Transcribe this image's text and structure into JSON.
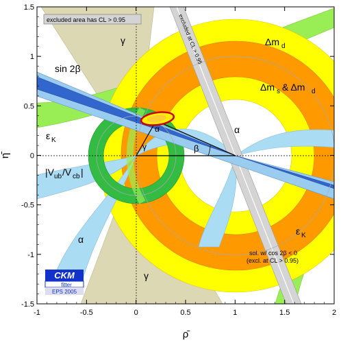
{
  "chart_data": {
    "type": "scatter",
    "title": "",
    "xlabel": "ρ̄",
    "ylabel": "η̄",
    "xlim": [
      -1,
      2
    ],
    "ylim": [
      -1.5,
      1.5
    ],
    "x_ticks": [
      {
        "v": -1,
        "label": "-1"
      },
      {
        "v": -0.5,
        "label": "-0.5"
      },
      {
        "v": 0,
        "label": "0"
      },
      {
        "v": 0.5,
        "label": "0.5"
      },
      {
        "v": 1,
        "label": "1"
      },
      {
        "v": 1.5,
        "label": "1.5"
      },
      {
        "v": 2,
        "label": "2"
      }
    ],
    "y_ticks": [
      {
        "v": -1.5,
        "label": "-1.5"
      },
      {
        "v": -1,
        "label": "-1"
      },
      {
        "v": -0.5,
        "label": "-0.5"
      },
      {
        "v": 0,
        "label": "0"
      },
      {
        "v": 0.5,
        "label": "0.5"
      },
      {
        "v": 1,
        "label": "1"
      },
      {
        "v": 1.5,
        "label": "1.5"
      }
    ],
    "grid": false,
    "apex": {
      "rho": 0.2,
      "eta": 0.35
    },
    "triangle": [
      [
        0,
        0
      ],
      [
        1,
        0
      ],
      [
        0.2,
        0.35
      ]
    ],
    "constraints": {
      "dmd": {
        "center": [
          1,
          0
        ],
        "rings": [
          {
            "r_out": 1.38,
            "r_in": 0.57,
            "color": "#ffff00"
          },
          {
            "r_out": 1.16,
            "r_in": 0.8,
            "color": "#ff9900"
          }
        ]
      },
      "vub": {
        "center": [
          0,
          0
        ],
        "rings": [
          {
            "r_out": 0.48,
            "r_in": 0.33,
            "color": "#33bb44"
          }
        ]
      },
      "sin2beta": {
        "beta_deg": [
          21.5,
          24.5
        ],
        "color_outer": "#99ccee",
        "color_inner": "#3366cc"
      }
    },
    "annotations": {
      "excluded_area": "excluded area has CL > 0.95",
      "excluded_band": "excluded at CL > 0.95",
      "gamma": "γ",
      "alpha": "α",
      "beta": "β",
      "sin2beta": "sin 2β",
      "dmd": "Δm",
      "dmd_sub": "d",
      "dms_dmd_1": "Δm",
      "dms_dmd_sub1": "s",
      "dms_dmd_amp": "& Δm",
      "dms_dmd_sub2": "d",
      "epsk": "ε",
      "epsk_sub": "K",
      "vub": "|V",
      "vub_sub1": "ub",
      "vub_mid": "/V",
      "vub_sub2": "cb",
      "vub_end": "|",
      "sol_line1": "sol. w/ cos 2β < 0",
      "sol_line2": "(excl. at CL > 0.95)"
    },
    "logo": {
      "name": "CKM",
      "sub": "fitter",
      "tag": "EPS 2005"
    }
  }
}
